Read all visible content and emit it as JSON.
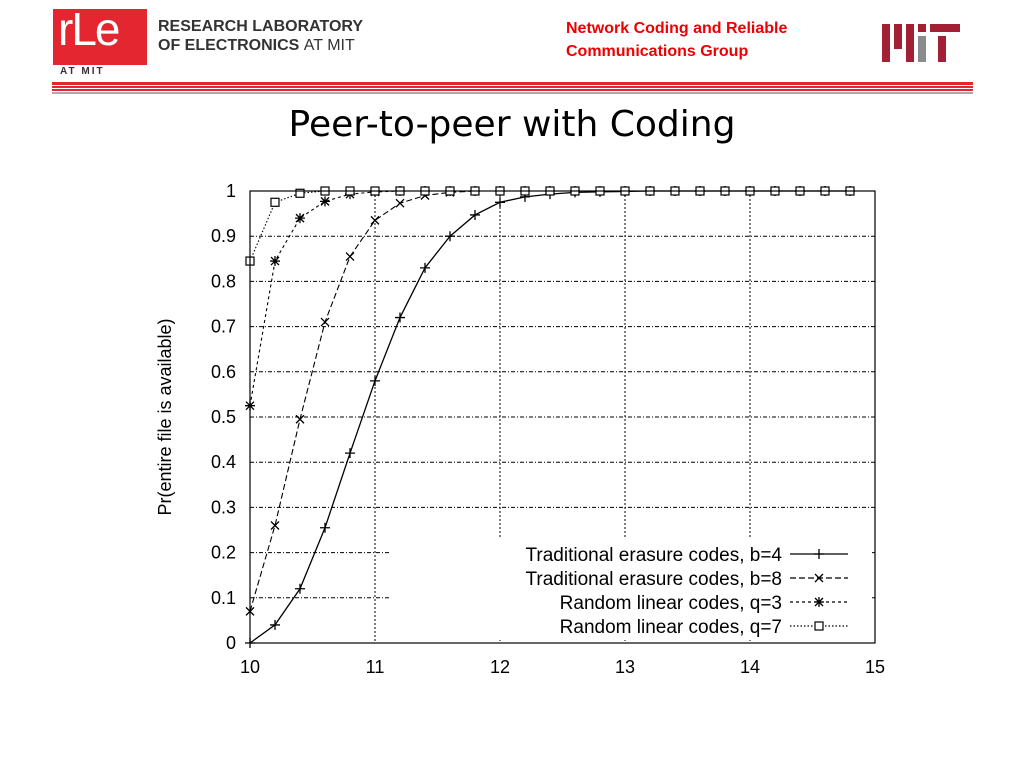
{
  "header": {
    "logo_text": "rLe",
    "logo_sub": "AT MIT",
    "lab_line1": "RESEARCH LABORATORY",
    "lab_line2": "OF ELECTRONICS",
    "lab_line2_suffix": "AT MIT",
    "group_line1": "Network Coding and Reliable",
    "group_line2": "Communications Group",
    "accent": "#e3262f"
  },
  "slide": {
    "title": "Peer-to-peer with Coding"
  },
  "chart_data": {
    "type": "line",
    "title": "",
    "xlabel": "",
    "ylabel": "Pr(entire file is available)",
    "xlim": [
      10,
      15
    ],
    "ylim": [
      0,
      1
    ],
    "xticks": [
      "10",
      "11",
      "12",
      "13",
      "14",
      "15"
    ],
    "yticks": [
      "0",
      "0.1",
      "0.2",
      "0.3",
      "0.4",
      "0.5",
      "0.6",
      "0.7",
      "0.8",
      "0.9",
      "1"
    ],
    "grid": true,
    "legend": "bottom-right",
    "x": [
      10,
      10.2,
      10.4,
      10.6,
      10.8,
      11,
      11.2,
      11.4,
      11.6,
      11.8,
      12,
      12.2,
      12.4,
      12.6,
      12.8,
      13,
      13.2,
      13.4,
      13.6,
      13.8,
      14,
      14.2,
      14.4,
      14.6,
      14.8
    ],
    "series": [
      {
        "name": "Traditional erasure codes, b=4",
        "marker": "plus",
        "dash": "solid",
        "values": [
          0,
          0.04,
          0.12,
          0.255,
          0.42,
          0.58,
          0.72,
          0.83,
          0.9,
          0.947,
          0.975,
          0.987,
          0.993,
          0.997,
          0.998,
          0.999,
          1,
          1,
          1,
          1,
          1,
          1,
          1,
          1,
          1
        ]
      },
      {
        "name": "Traditional erasure codes, b=8",
        "marker": "cross",
        "dash": "dashed",
        "values": [
          0.07,
          0.26,
          0.495,
          0.71,
          0.855,
          0.935,
          0.973,
          0.99,
          0.997,
          1,
          1,
          1,
          1,
          1,
          1,
          1,
          1,
          1,
          1,
          1,
          1,
          1,
          1,
          1,
          1
        ]
      },
      {
        "name": "Random linear codes, q=3",
        "marker": "star",
        "dash": "dotted",
        "values": [
          0.525,
          0.845,
          0.94,
          0.977,
          0.993,
          0.998,
          1,
          1,
          1,
          1,
          1,
          1,
          1,
          1,
          1,
          1,
          1,
          1,
          1,
          1,
          1,
          1,
          1,
          1,
          1
        ]
      },
      {
        "name": "Random linear codes, q=7",
        "marker": "square",
        "dash": "fine-dotted",
        "values": [
          0.845,
          0.975,
          0.995,
          1,
          1,
          1,
          1,
          1,
          1,
          1,
          1,
          1,
          1,
          1,
          1,
          1,
          1,
          1,
          1,
          1,
          1,
          1,
          1,
          1,
          1
        ]
      }
    ]
  }
}
